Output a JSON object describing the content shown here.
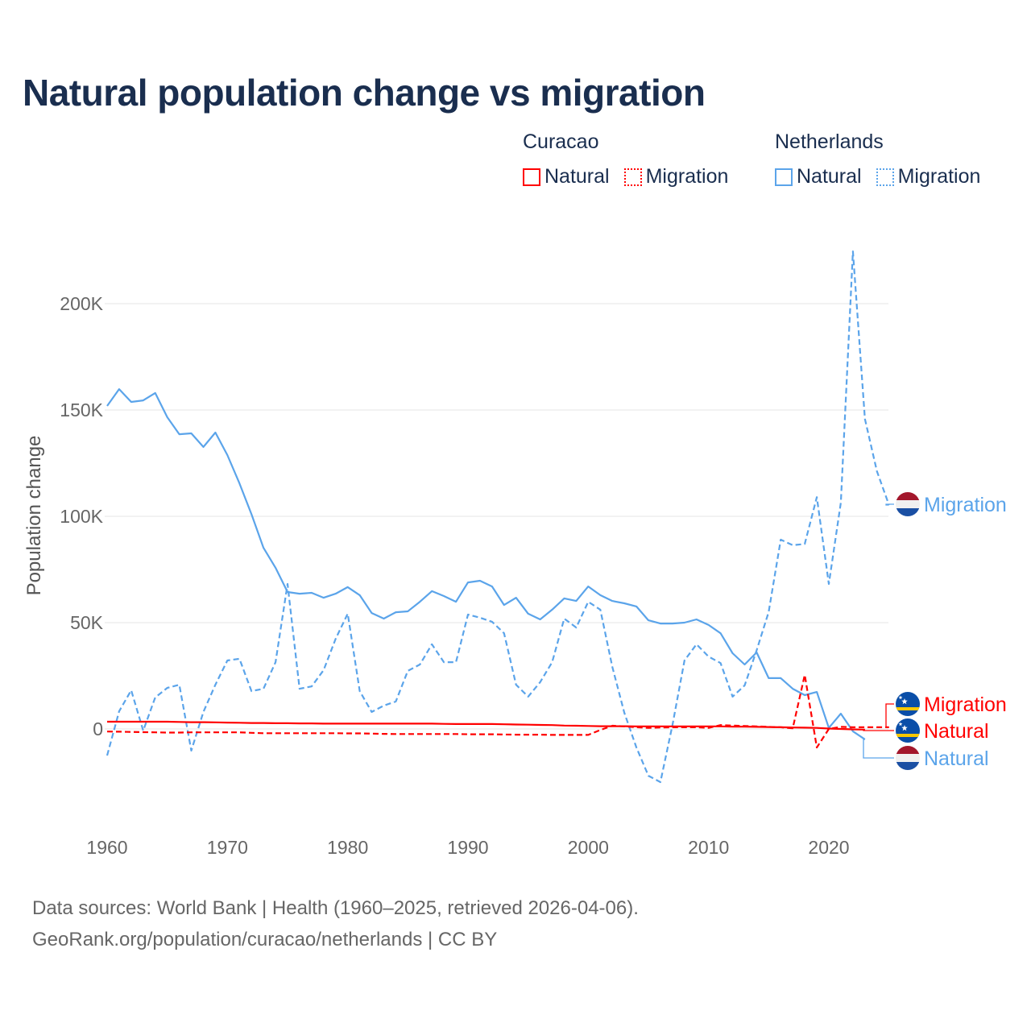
{
  "title": "Natural population change vs migration",
  "legend": [
    {
      "group": "Curacao",
      "items": [
        {
          "label": "Natural",
          "style": "solid",
          "color": "#ff0000"
        },
        {
          "label": "Migration",
          "style": "dotted",
          "color": "#ff0000"
        }
      ]
    },
    {
      "group": "Netherlands",
      "items": [
        {
          "label": "Natural",
          "style": "solid",
          "color": "#5ba4ea"
        },
        {
          "label": "Migration",
          "style": "dotted",
          "color": "#5ba4ea"
        }
      ]
    }
  ],
  "source_lines": [
    "Data sources: World Bank | Health (1960–2025, retrieved 2026-04-06).",
    "GeoRank.org/population/curacao/netherlands | CC BY"
  ],
  "chart_data": {
    "type": "line",
    "title": "Natural population change vs migration",
    "xlabel": "",
    "ylabel": "Population change",
    "xlim": [
      1960,
      2025
    ],
    "ylim": [
      -40,
      230
    ],
    "units": "thousands",
    "x_ticks": [
      1960,
      1970,
      1980,
      1990,
      2000,
      2010,
      2020
    ],
    "x_tick_labels": [
      "1960",
      "1970",
      "1980",
      "1990",
      "2000",
      "2010",
      "2020"
    ],
    "y_ticks": [
      0,
      50,
      100,
      150,
      200
    ],
    "y_tick_labels": [
      "0",
      "50K",
      "100K",
      "150K",
      "200K"
    ],
    "grid": true,
    "legend_position": "top-right",
    "x_start": 1960,
    "series": [
      {
        "name": "Netherlands Natural",
        "end_label": "Natural",
        "country": "Netherlands",
        "color": "#5ba4ea",
        "dash": false,
        "values": [
          151.9,
          159.8,
          153.8,
          154.5,
          158,
          146.6,
          138.6,
          139,
          132.6,
          139.4,
          128.8,
          115.5,
          101,
          85.2,
          75.8,
          64.4,
          63.6,
          64,
          61.7,
          63.6,
          66.7,
          62.9,
          54.5,
          51.9,
          54.9,
          55.3,
          59.8,
          64.8,
          62.5,
          59.8,
          68.9,
          69.7,
          67,
          58.3,
          61.7,
          54.2,
          51.5,
          56.1,
          61.4,
          60.2,
          67,
          62.9,
          60.2,
          59.1,
          57.6,
          51.1,
          49.6,
          49.6,
          50,
          51.5,
          48.9,
          45,
          35.6,
          30.3,
          36,
          23.9,
          23.9,
          18.9,
          15.9,
          17.4,
          0.5,
          7.2,
          -1.1,
          -4.9
        ]
      },
      {
        "name": "Netherlands Migration",
        "end_label": "Migration",
        "country": "Netherlands",
        "color": "#5ba4ea",
        "dash": true,
        "values": [
          -12.5,
          8.3,
          18.2,
          -0.8,
          14.8,
          19.3,
          20.8,
          -10.2,
          8,
          20.8,
          32.2,
          33,
          17.8,
          18.9,
          31.4,
          68.2,
          18.9,
          20,
          27.7,
          42.4,
          54.2,
          17.8,
          8,
          11,
          12.9,
          27.3,
          30.3,
          39.8,
          31.4,
          31.4,
          53.8,
          52.3,
          50.4,
          45,
          20.8,
          15.2,
          22,
          31.4,
          51.9,
          47.7,
          59.8,
          56.1,
          29.2,
          7.6,
          -8.7,
          -22,
          -25,
          1.9,
          32.2,
          39.8,
          34,
          31,
          15.2,
          20.5,
          37,
          55,
          89,
          86.4,
          87,
          109,
          68.2,
          106.4,
          224.6,
          145.8,
          121.2,
          105.3
        ]
      },
      {
        "name": "Curacao Natural",
        "end_label": "Natural",
        "country": "Curacao",
        "color": "#ff0000",
        "dash": false,
        "values": [
          3.4,
          3.4,
          3.4,
          3.4,
          3.4,
          3.4,
          3.3,
          3.2,
          3.2,
          3.1,
          3.0,
          2.9,
          2.8,
          2.8,
          2.7,
          2.7,
          2.6,
          2.6,
          2.5,
          2.5,
          2.5,
          2.5,
          2.5,
          2.5,
          2.5,
          2.5,
          2.5,
          2.5,
          2.4,
          2.3,
          2.3,
          2.3,
          2.3,
          2.2,
          2.1,
          2.0,
          1.9,
          1.8,
          1.6,
          1.5,
          1.4,
          1.3,
          1.3,
          1.3,
          1.2,
          1.2,
          1.2,
          1.2,
          1.2,
          1.2,
          1.2,
          1.2,
          1.1,
          1.1,
          1.0,
          0.9,
          0.8,
          0.7,
          0.6,
          0.5,
          0.2,
          0.0,
          -0.2,
          -0.3
        ]
      },
      {
        "name": "Curacao Migration",
        "end_label": "Migration",
        "country": "Curacao",
        "color": "#ff0000",
        "dash": true,
        "values": [
          -1.2,
          -1.3,
          -1.4,
          -1.5,
          -1.6,
          -1.7,
          -1.7,
          -1.6,
          -1.6,
          -1.6,
          -1.6,
          -1.6,
          -1.8,
          -2.0,
          -2.0,
          -2.0,
          -2.0,
          -2.0,
          -2.0,
          -2.0,
          -2.1,
          -2.1,
          -2.2,
          -2.3,
          -2.4,
          -2.4,
          -2.4,
          -2.4,
          -2.4,
          -2.4,
          -2.5,
          -2.5,
          -2.5,
          -2.6,
          -2.7,
          -2.7,
          -2.7,
          -2.8,
          -2.8,
          -2.8,
          -2.8,
          -0.5,
          1.5,
          1.2,
          0.8,
          0.5,
          0.7,
          0.8,
          0.8,
          0.8,
          0.5,
          1.8,
          1.6,
          1.4,
          1.2,
          1.0,
          0.8,
          0.3,
          25.4,
          -8.7,
          0.0,
          1.0,
          0.8,
          0.8,
          0.8,
          0.8
        ]
      }
    ]
  }
}
